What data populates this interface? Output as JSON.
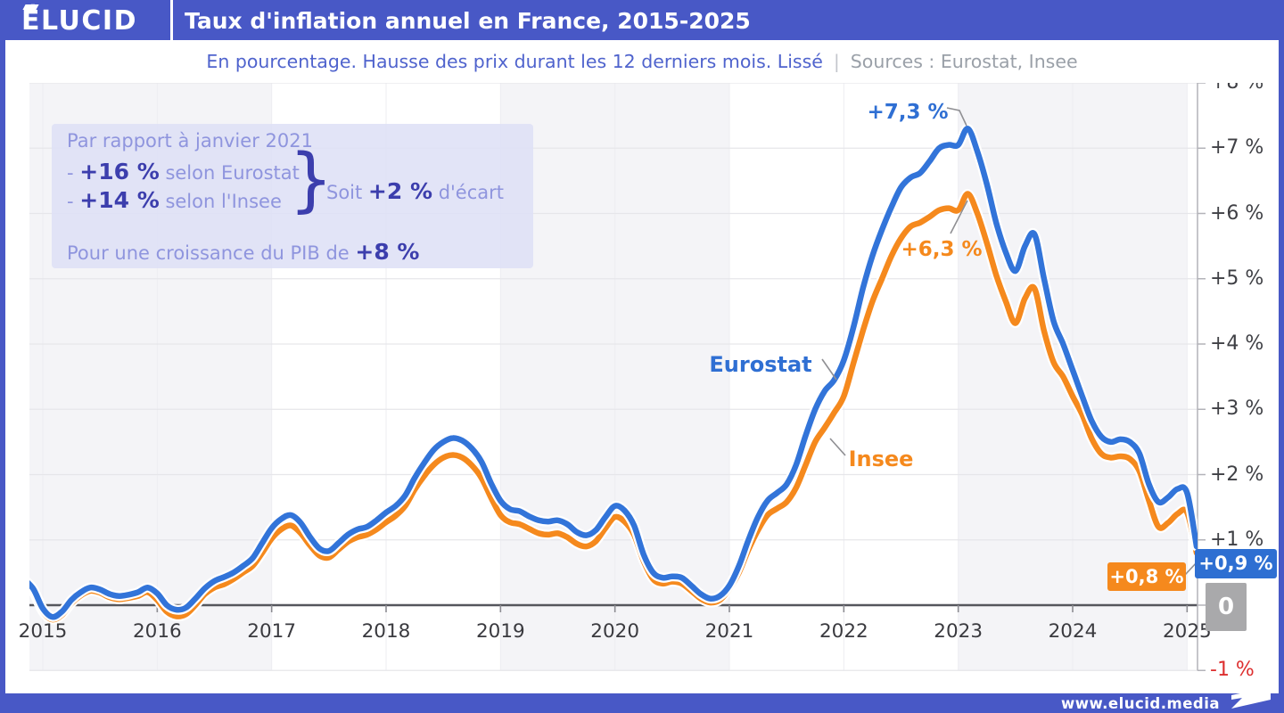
{
  "header": {
    "logo": "ÉLUCID",
    "title": "Taux d'inflation annuel en France, 2015-2025"
  },
  "subtitle": {
    "text": "En pourcentage. Hausse des prix durant les 12 derniers mois. Lissé",
    "separator": "|",
    "sources": "Sources : Eurostat, Insee"
  },
  "annotation": {
    "line1": "Par rapport à janvier 2021",
    "item1_prefix": "- ",
    "item1_value": "+16 %",
    "item1_suffix": " selon Eurostat",
    "item2_prefix": "- ",
    "item2_value": "+14 %",
    "item2_suffix": " selon l'Insee",
    "brace": "}",
    "aside_prefix": "Soit ",
    "aside_value": "+2 %",
    "aside_suffix": " d'écart",
    "line4_prefix": "Pour une croissance du PIB de ",
    "line4_value": "+8 %"
  },
  "chart_data": {
    "type": "line",
    "title": "Taux d'inflation annuel en France, 2015-2025",
    "subtitle": "En pourcentage. Hausse des prix durant les 12 derniers mois. Lissé",
    "sources": "Eurostat, Insee",
    "unit": "%",
    "frequency": "monthly",
    "x_start": "2014-11",
    "x_end": "2025-02",
    "grid": true,
    "x_axis": {
      "ticks": [
        "2015",
        "2016",
        "2017",
        "2018",
        "2019",
        "2020",
        "2021",
        "2022",
        "2023",
        "2024",
        "2025"
      ]
    },
    "y_axis": {
      "min": -1,
      "max": 8,
      "zero_label": "0",
      "ticks": [
        {
          "value": 8,
          "label": "+8 %"
        },
        {
          "value": 7,
          "label": "+7 %"
        },
        {
          "value": 6,
          "label": "+6 %"
        },
        {
          "value": 5,
          "label": "+5 %"
        },
        {
          "value": 4,
          "label": "+4 %"
        },
        {
          "value": 3,
          "label": "+3 %"
        },
        {
          "value": 2,
          "label": "+2 %"
        },
        {
          "value": 1,
          "label": "+1 %"
        },
        {
          "value": -1,
          "label": "-1 %",
          "negative": true
        }
      ]
    },
    "series": [
      {
        "name": "Eurostat",
        "color": "#3274d9",
        "values": [
          0.4,
          0.25,
          -0.05,
          -0.18,
          -0.1,
          0.08,
          0.2,
          0.27,
          0.24,
          0.17,
          0.14,
          0.16,
          0.2,
          0.27,
          0.18,
          0,
          -0.07,
          -0.04,
          0.1,
          0.26,
          0.37,
          0.43,
          0.5,
          0.6,
          0.72,
          0.95,
          1.18,
          1.32,
          1.38,
          1.27,
          1.05,
          0.87,
          0.83,
          0.95,
          1.08,
          1.16,
          1.2,
          1.3,
          1.42,
          1.52,
          1.68,
          1.95,
          2.18,
          2.38,
          2.5,
          2.56,
          2.52,
          2.4,
          2.2,
          1.87,
          1.6,
          1.47,
          1.44,
          1.36,
          1.3,
          1.28,
          1.3,
          1.24,
          1.12,
          1.07,
          1.15,
          1.35,
          1.52,
          1.45,
          1.22,
          0.78,
          0.5,
          0.42,
          0.44,
          0.42,
          0.3,
          0.17,
          0.1,
          0.14,
          0.3,
          0.6,
          1.0,
          1.35,
          1.6,
          1.72,
          1.85,
          2.15,
          2.6,
          3.0,
          3.28,
          3.45,
          3.75,
          4.25,
          4.85,
          5.35,
          5.75,
          6.1,
          6.4,
          6.55,
          6.62,
          6.8,
          7.0,
          7.05,
          7.05,
          7.3,
          6.95,
          6.45,
          5.85,
          5.4,
          5.12,
          5.5,
          5.68,
          5.0,
          4.35,
          4.0,
          3.6,
          3.2,
          2.82,
          2.58,
          2.5,
          2.54,
          2.5,
          2.32,
          1.85,
          1.58,
          1.65,
          1.78,
          1.72,
          0.9
        ]
      },
      {
        "name": "Insee",
        "color": "#f5891d",
        "values": [
          0.35,
          0.2,
          -0.1,
          -0.22,
          -0.15,
          0.03,
          0.15,
          0.22,
          0.19,
          0.12,
          0.09,
          0.11,
          0.14,
          0.2,
          0.08,
          -0.1,
          -0.17,
          -0.14,
          0,
          0.17,
          0.27,
          0.32,
          0.4,
          0.5,
          0.6,
          0.8,
          1.02,
          1.16,
          1.22,
          1.11,
          0.92,
          0.76,
          0.73,
          0.85,
          0.97,
          1.04,
          1.08,
          1.16,
          1.27,
          1.37,
          1.52,
          1.77,
          1.98,
          2.15,
          2.26,
          2.3,
          2.26,
          2.14,
          1.95,
          1.65,
          1.38,
          1.27,
          1.24,
          1.17,
          1.1,
          1.08,
          1.1,
          1.04,
          0.94,
          0.9,
          0.98,
          1.18,
          1.35,
          1.28,
          1.08,
          0.68,
          0.4,
          0.33,
          0.36,
          0.33,
          0.22,
          0.1,
          0.04,
          0.08,
          0.25,
          0.5,
          0.85,
          1.15,
          1.38,
          1.48,
          1.58,
          1.8,
          2.15,
          2.5,
          2.72,
          2.95,
          3.2,
          3.7,
          4.2,
          4.65,
          5.0,
          5.35,
          5.62,
          5.8,
          5.86,
          5.95,
          6.05,
          6.08,
          6.05,
          6.3,
          6.0,
          5.55,
          5.05,
          4.65,
          4.32,
          4.7,
          4.85,
          4.2,
          3.72,
          3.5,
          3.2,
          2.92,
          2.55,
          2.32,
          2.26,
          2.28,
          2.24,
          2.05,
          1.6,
          1.2,
          1.26,
          1.4,
          1.42,
          0.8
        ]
      }
    ],
    "callouts": {
      "eurostat_peak": {
        "label": "+7,3 %",
        "value": 7.3
      },
      "insee_peak": {
        "label": "+6,3 %",
        "value": 6.3
      },
      "eurostat_last": {
        "label": "+0,9 %",
        "value": 0.9
      },
      "insee_last": {
        "label": "+0,8 %",
        "value": 0.8
      }
    },
    "colors": {
      "eurostat": "#3274d9",
      "insee": "#f5891d",
      "header": "#4858c6",
      "negative_tick": "#dd2f2f",
      "band": "#f4f4f7"
    }
  },
  "footer": {
    "site": "www.elucid.media"
  }
}
